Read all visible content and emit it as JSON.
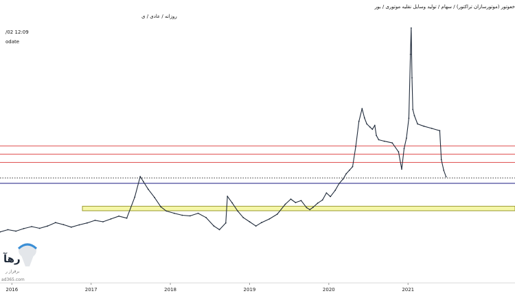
{
  "header": {
    "instrument_line": "خعوتور (موتورسازان تراکتور) / سهام / تولید وسایل نقلیه موتوری / بور",
    "timeframe_line": "روزانه / عادی / ی",
    "datetime": "/02 12:09",
    "status": "odate"
  },
  "watermark": {
    "brand": "رهآ",
    "tagline": "برفراز ر",
    "url": "ad365.com"
  },
  "colors": {
    "price_line": "#1f2a3a",
    "resistance_lines": "#e05050",
    "dotted_line": "#333333",
    "support_line": "#1a1a80",
    "zone_fill": "#f5f7a8",
    "zone_border": "#9a9a30",
    "axis_text": "#222222"
  },
  "chart_data": {
    "type": "line",
    "title": "",
    "xlabel": "",
    "ylabel": "",
    "x_ticks": [
      "2016",
      "2017",
      "2018",
      "2019",
      "2020",
      "2021"
    ],
    "xlim": [
      2015.85,
      2022.35
    ],
    "ylim": [
      0,
      100
    ],
    "grid": false,
    "legend": "none",
    "horizontal_lines": [
      {
        "style": "solid",
        "color_key": "resistance_lines",
        "y": 48.4
      },
      {
        "style": "solid",
        "color_key": "resistance_lines",
        "y": 45.5
      },
      {
        "style": "solid",
        "color_key": "resistance_lines",
        "y": 42.6
      },
      {
        "style": "dotted",
        "color_key": "dotted_line",
        "y": 37.1
      },
      {
        "style": "solid",
        "color_key": "support_line",
        "y": 35.2
      }
    ],
    "zone": {
      "y_low": 25.5,
      "y_high": 27.1,
      "x_start": 2016.89
    },
    "series": [
      {
        "x": [
          2015.85,
          2015.95,
          2016.05,
          2016.15,
          2016.25,
          2016.35,
          2016.45,
          2016.55,
          2016.65,
          2016.75,
          2016.85,
          2016.95,
          2017.05,
          2017.15,
          2017.25,
          2017.35,
          2017.45,
          2017.55,
          2017.62,
          2017.66,
          2017.72,
          2017.8,
          2017.88,
          2017.95,
          2018.05,
          2018.15,
          2018.25,
          2018.35,
          2018.45,
          2018.55,
          2018.62,
          2018.7,
          2018.72,
          2018.78,
          2018.85,
          2018.92,
          2019.0,
          2019.08,
          2019.15,
          2019.25,
          2019.35,
          2019.45,
          2019.52,
          2019.58,
          2019.65,
          2019.72,
          2019.76,
          2019.8,
          2019.86,
          2019.92,
          2019.97,
          2020.02,
          2020.08,
          2020.13,
          2020.18,
          2020.22,
          2020.26,
          2020.3,
          2020.34,
          2020.38,
          2020.42,
          2020.45,
          2020.48,
          2020.52,
          2020.55,
          2020.58,
          2020.6,
          2020.63,
          2020.7,
          2020.8,
          2020.88,
          2020.92,
          2020.95,
          2020.98,
          2021.01,
          2021.03,
          2021.04,
          2021.05,
          2021.06,
          2021.08,
          2021.12,
          2021.2,
          2021.3,
          2021.4,
          2021.42,
          2021.45,
          2021.48
        ],
        "y": [
          18,
          18.8,
          18.3,
          19.2,
          19.9,
          19.3,
          20.1,
          21.3,
          20.6,
          19.7,
          20.5,
          21.2,
          22.1,
          21.6,
          22.6,
          23.6,
          22.9,
          30.3,
          37.6,
          35.8,
          33.1,
          30.2,
          26.9,
          25.4,
          24.6,
          23.9,
          23.7,
          24.6,
          23.1,
          20.1,
          18.8,
          21.2,
          30.6,
          28.3,
          25.4,
          23.1,
          21.6,
          20.1,
          21.3,
          22.6,
          24.3,
          27.8,
          29.6,
          28.4,
          29.1,
          26.6,
          25.9,
          26.7,
          28.2,
          29.3,
          31.8,
          30.5,
          32.7,
          35.1,
          36.7,
          38.6,
          39.8,
          41.1,
          48.2,
          57.1,
          61.6,
          58.3,
          56.2,
          55.1,
          54.3,
          55.7,
          52.1,
          50.6,
          50.1,
          49.5,
          46.3,
          40.2,
          47.5,
          51.2,
          58.2,
          80.8,
          90.1,
          72.5,
          61.3,
          59.1,
          56.2,
          55.4,
          54.6,
          53.8,
          43.6,
          39.8,
          37.5
        ]
      }
    ]
  }
}
